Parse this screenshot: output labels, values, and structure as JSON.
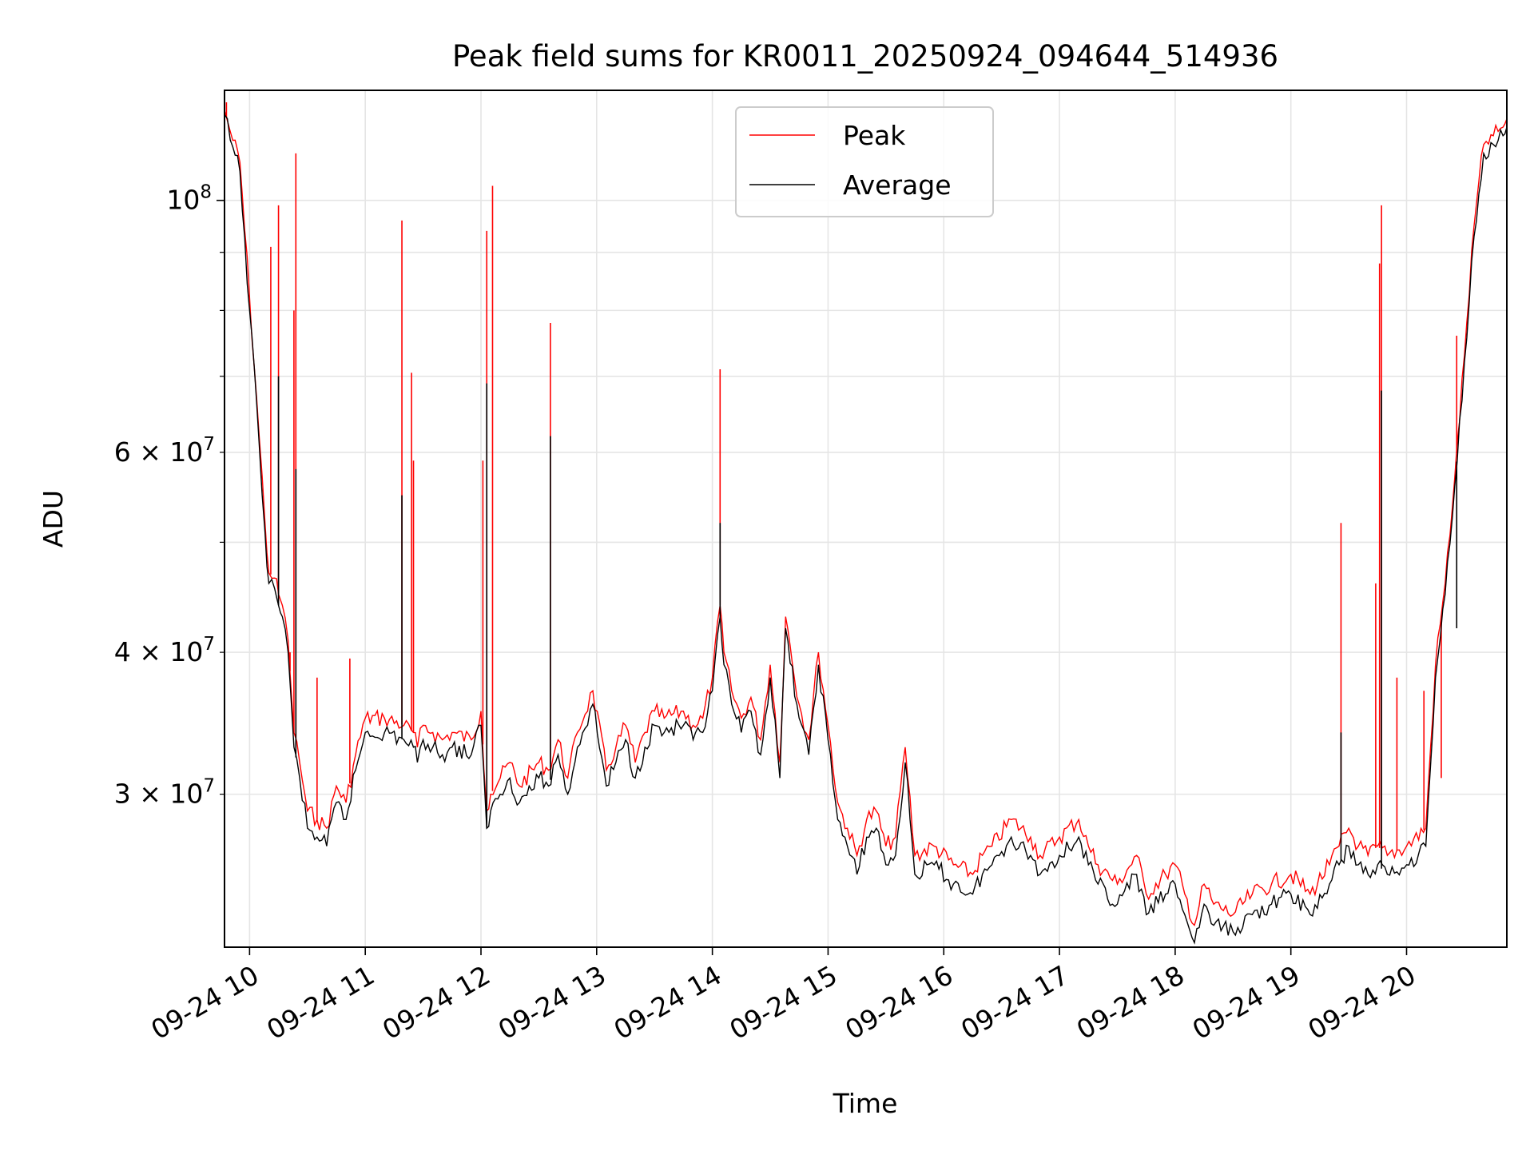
{
  "chart_data": {
    "type": "line",
    "title": "Peak field sums for KR0011_20250924_094644_514936",
    "xlabel": "Time",
    "ylabel": "ADU",
    "yscale": "log",
    "xlim": [
      "2025-09-24 09:47",
      "2025-09-24 20:52"
    ],
    "ylim": [
      22000000,
      125000000
    ],
    "grid": true,
    "legend": "upper-center",
    "x_ticks": [
      "09-24 10",
      "09-24 11",
      "09-24 12",
      "09-24 13",
      "09-24 14",
      "09-24 15",
      "09-24 16",
      "09-24 17",
      "09-24 18",
      "09-24 19",
      "09-24 20"
    ],
    "y_ticks_major": [
      {
        "value": 100000000,
        "base": "10",
        "exp": "8",
        "mant": ""
      }
    ],
    "y_ticks_minor_labeled": [
      {
        "value": 30000000,
        "mant": "3",
        "base": "10",
        "exp": "7"
      },
      {
        "value": 40000000,
        "mant": "4",
        "base": "10",
        "exp": "7"
      },
      {
        "value": 60000000,
        "mant": "6",
        "base": "10",
        "exp": "7"
      }
    ],
    "series": [
      {
        "name": "Peak",
        "color": "#ff0000",
        "x": [
          "2025-09-24 09:47",
          "2025-09-24 09:50",
          "2025-09-24 09:55",
          "2025-09-24 10:00",
          "2025-09-24 10:05",
          "2025-09-24 10:08",
          "2025-09-24 10:10",
          "2025-09-24 10:13",
          "2025-09-24 10:15",
          "2025-09-24 10:17",
          "2025-09-24 10:20",
          "2025-09-24 10:23",
          "2025-09-24 10:26",
          "2025-09-24 10:30",
          "2025-09-24 10:35",
          "2025-09-24 10:40",
          "2025-09-24 10:45",
          "2025-09-24 10:50",
          "2025-09-24 10:55",
          "2025-09-24 11:00",
          "2025-09-24 11:10",
          "2025-09-24 11:20",
          "2025-09-24 11:25",
          "2025-09-24 11:27",
          "2025-09-24 11:30",
          "2025-09-24 11:35",
          "2025-09-24 11:40",
          "2025-09-24 11:45",
          "2025-09-24 11:55",
          "2025-09-24 12:00",
          "2025-09-24 12:03",
          "2025-09-24 12:05",
          "2025-09-24 12:10",
          "2025-09-24 12:15",
          "2025-09-24 12:20",
          "2025-09-24 12:30",
          "2025-09-24 12:35",
          "2025-09-24 12:40",
          "2025-09-24 12:45",
          "2025-09-24 12:50",
          "2025-09-24 12:58",
          "2025-09-24 13:05",
          "2025-09-24 13:10",
          "2025-09-24 13:15",
          "2025-09-24 13:20",
          "2025-09-24 13:25",
          "2025-09-24 13:30",
          "2025-09-24 13:35",
          "2025-09-24 13:45",
          "2025-09-24 13:50",
          "2025-09-24 13:55",
          "2025-09-24 14:00",
          "2025-09-24 14:04",
          "2025-09-24 14:06",
          "2025-09-24 14:10",
          "2025-09-24 14:15",
          "2025-09-24 14:20",
          "2025-09-24 14:25",
          "2025-09-24 14:30",
          "2025-09-24 14:35",
          "2025-09-24 14:38",
          "2025-09-24 14:45",
          "2025-09-24 14:50",
          "2025-09-24 14:55",
          "2025-09-24 15:00",
          "2025-09-24 15:05",
          "2025-09-24 15:10",
          "2025-09-24 15:15",
          "2025-09-24 15:20",
          "2025-09-24 15:25",
          "2025-09-24 15:30",
          "2025-09-24 15:35",
          "2025-09-24 15:40",
          "2025-09-24 15:45",
          "2025-09-24 15:55",
          "2025-09-24 16:05",
          "2025-09-24 16:15",
          "2025-09-24 16:20",
          "2025-09-24 16:25",
          "2025-09-24 16:35",
          "2025-09-24 16:45",
          "2025-09-24 16:50",
          "2025-09-24 17:00",
          "2025-09-24 17:10",
          "2025-09-24 17:15",
          "2025-09-24 17:20",
          "2025-09-24 17:30",
          "2025-09-24 17:40",
          "2025-09-24 17:45",
          "2025-09-24 17:55",
          "2025-09-24 18:00",
          "2025-09-24 18:05",
          "2025-09-24 18:10",
          "2025-09-24 18:15",
          "2025-09-24 18:20",
          "2025-09-24 18:30",
          "2025-09-24 18:40",
          "2025-09-24 18:50",
          "2025-09-24 19:00",
          "2025-09-24 19:10",
          "2025-09-24 19:20",
          "2025-09-24 19:25",
          "2025-09-24 19:30",
          "2025-09-24 19:35",
          "2025-09-24 19:40",
          "2025-09-24 19:45",
          "2025-09-24 19:50",
          "2025-09-24 20:00",
          "2025-09-24 20:10",
          "2025-09-24 20:15",
          "2025-09-24 20:20",
          "2025-09-24 20:25",
          "2025-09-24 20:30",
          "2025-09-24 20:35",
          "2025-09-24 20:40",
          "2025-09-24 20:45",
          "2025-09-24 20:50",
          "2025-09-24 20:52"
        ],
        "values": [
          120000000,
          115000000,
          108000000,
          82000000,
          62000000,
          52000000,
          47000000,
          46500000,
          45000000,
          44000000,
          41000000,
          34000000,
          32000000,
          29000000,
          28500000,
          28000000,
          30500000,
          29500000,
          32500000,
          35000000,
          35000000,
          34500000,
          34000000,
          33000000,
          34500000,
          34000000,
          33500000,
          34000000,
          33500000,
          35500000,
          29000000,
          30000000,
          31000000,
          32000000,
          30500000,
          32000000,
          31500000,
          33500000,
          31000000,
          34000000,
          37000000,
          31500000,
          33000000,
          34500000,
          32000000,
          34000000,
          35500000,
          35000000,
          35500000,
          34500000,
          35000000,
          38000000,
          44000000,
          40000000,
          37000000,
          35000000,
          36500000,
          33500000,
          39000000,
          32000000,
          43000000,
          36000000,
          33500000,
          40000000,
          34500000,
          29500000,
          28000000,
          26500000,
          28500000,
          29000000,
          27000000,
          27500000,
          33000000,
          26500000,
          27000000,
          26000000,
          25500000,
          26500000,
          27000000,
          28500000,
          27500000,
          26500000,
          27500000,
          28500000,
          27000000,
          26000000,
          25000000,
          26500000,
          24500000,
          25500000,
          26000000,
          24500000,
          23000000,
          25000000,
          24000000,
          23500000,
          24500000,
          25000000,
          25500000,
          24500000,
          26000000,
          27000000,
          28000000,
          27000000,
          26500000,
          27000000,
          26500000,
          27000000,
          28000000,
          39000000,
          46000000,
          57000000,
          73000000,
          95000000,
          112000000,
          114000000,
          116000000,
          118000000
        ],
        "spikes": [
          {
            "x": "2025-09-24 09:48",
            "value": 122000000
          },
          {
            "x": "2025-09-24 10:11",
            "value": 91000000
          },
          {
            "x": "2025-09-24 10:15",
            "value": 99000000
          },
          {
            "x": "2025-09-24 10:21",
            "value": 40000000
          },
          {
            "x": "2025-09-24 10:23",
            "value": 80000000
          },
          {
            "x": "2025-09-24 10:24",
            "value": 110000000
          },
          {
            "x": "2025-09-24 10:35",
            "value": 38000000
          },
          {
            "x": "2025-09-24 10:52",
            "value": 39500000
          },
          {
            "x": "2025-09-24 11:19",
            "value": 96000000
          },
          {
            "x": "2025-09-24 11:24",
            "value": 70500000
          },
          {
            "x": "2025-09-24 11:25",
            "value": 59000000
          },
          {
            "x": "2025-09-24 12:01",
            "value": 59000000
          },
          {
            "x": "2025-09-24 12:03",
            "value": 94000000
          },
          {
            "x": "2025-09-24 12:06",
            "value": 103000000
          },
          {
            "x": "2025-09-24 12:36",
            "value": 78000000
          },
          {
            "x": "2025-09-24 14:04",
            "value": 71000000
          },
          {
            "x": "2025-09-24 19:26",
            "value": 52000000
          },
          {
            "x": "2025-09-24 19:44",
            "value": 46000000
          },
          {
            "x": "2025-09-24 19:46",
            "value": 88000000
          },
          {
            "x": "2025-09-24 19:47",
            "value": 99000000
          },
          {
            "x": "2025-09-24 19:55",
            "value": 38000000
          },
          {
            "x": "2025-09-24 20:09",
            "value": 37000000
          },
          {
            "x": "2025-09-24 20:18",
            "value": 31000000
          },
          {
            "x": "2025-09-24 20:26",
            "value": 76000000
          }
        ]
      },
      {
        "name": "Average",
        "color": "#000000",
        "x": [
          "2025-09-24 09:47",
          "2025-09-24 09:50",
          "2025-09-24 09:55",
          "2025-09-24 10:00",
          "2025-09-24 10:05",
          "2025-09-24 10:08",
          "2025-09-24 10:10",
          "2025-09-24 10:13",
          "2025-09-24 10:15",
          "2025-09-24 10:17",
          "2025-09-24 10:20",
          "2025-09-24 10:23",
          "2025-09-24 10:26",
          "2025-09-24 10:30",
          "2025-09-24 10:35",
          "2025-09-24 10:40",
          "2025-09-24 10:45",
          "2025-09-24 10:50",
          "2025-09-24 10:55",
          "2025-09-24 11:00",
          "2025-09-24 11:10",
          "2025-09-24 11:20",
          "2025-09-24 11:25",
          "2025-09-24 11:27",
          "2025-09-24 11:30",
          "2025-09-24 11:35",
          "2025-09-24 11:40",
          "2025-09-24 11:45",
          "2025-09-24 11:55",
          "2025-09-24 12:00",
          "2025-09-24 12:03",
          "2025-09-24 12:05",
          "2025-09-24 12:10",
          "2025-09-24 12:15",
          "2025-09-24 12:20",
          "2025-09-24 12:30",
          "2025-09-24 12:35",
          "2025-09-24 12:40",
          "2025-09-24 12:45",
          "2025-09-24 12:50",
          "2025-09-24 12:58",
          "2025-09-24 13:05",
          "2025-09-24 13:10",
          "2025-09-24 13:15",
          "2025-09-24 13:20",
          "2025-09-24 13:25",
          "2025-09-24 13:30",
          "2025-09-24 13:35",
          "2025-09-24 13:45",
          "2025-09-24 13:50",
          "2025-09-24 13:55",
          "2025-09-24 14:00",
          "2025-09-24 14:04",
          "2025-09-24 14:06",
          "2025-09-24 14:10",
          "2025-09-24 14:15",
          "2025-09-24 14:20",
          "2025-09-24 14:25",
          "2025-09-24 14:30",
          "2025-09-24 14:35",
          "2025-09-24 14:38",
          "2025-09-24 14:45",
          "2025-09-24 14:50",
          "2025-09-24 14:55",
          "2025-09-24 15:00",
          "2025-09-24 15:05",
          "2025-09-24 15:10",
          "2025-09-24 15:15",
          "2025-09-24 15:20",
          "2025-09-24 15:25",
          "2025-09-24 15:30",
          "2025-09-24 15:35",
          "2025-09-24 15:40",
          "2025-09-24 15:45",
          "2025-09-24 15:55",
          "2025-09-24 16:05",
          "2025-09-24 16:15",
          "2025-09-24 16:20",
          "2025-09-24 16:25",
          "2025-09-24 16:35",
          "2025-09-24 16:45",
          "2025-09-24 16:50",
          "2025-09-24 17:00",
          "2025-09-24 17:10",
          "2025-09-24 17:15",
          "2025-09-24 17:20",
          "2025-09-24 17:30",
          "2025-09-24 17:40",
          "2025-09-24 17:45",
          "2025-09-24 17:55",
          "2025-09-24 18:00",
          "2025-09-24 18:05",
          "2025-09-24 18:10",
          "2025-09-24 18:15",
          "2025-09-24 18:20",
          "2025-09-24 18:30",
          "2025-09-24 18:40",
          "2025-09-24 18:50",
          "2025-09-24 19:00",
          "2025-09-24 19:10",
          "2025-09-24 19:20",
          "2025-09-24 19:25",
          "2025-09-24 19:30",
          "2025-09-24 19:35",
          "2025-09-24 19:40",
          "2025-09-24 19:45",
          "2025-09-24 19:50",
          "2025-09-24 20:00",
          "2025-09-24 20:10",
          "2025-09-24 20:15",
          "2025-09-24 20:20",
          "2025-09-24 20:25",
          "2025-09-24 20:30",
          "2025-09-24 20:35",
          "2025-09-24 20:40",
          "2025-09-24 20:45",
          "2025-09-24 20:50",
          "2025-09-24 20:52"
        ],
        "values": [
          119000000,
          113000000,
          106000000,
          80000000,
          61000000,
          51000000,
          46000000,
          45500000,
          44000000,
          43000000,
          40000000,
          33000000,
          31000000,
          28000000,
          27500000,
          27000000,
          29500000,
          28500000,
          31500000,
          34000000,
          34000000,
          33500000,
          33000000,
          32000000,
          33500000,
          33000000,
          32500000,
          33000000,
          32500000,
          34500000,
          28000000,
          29000000,
          30000000,
          31000000,
          29500000,
          31000000,
          30500000,
          32500000,
          30000000,
          33000000,
          36000000,
          30500000,
          32000000,
          33500000,
          31000000,
          33000000,
          34500000,
          34000000,
          34500000,
          33500000,
          34000000,
          37000000,
          43000000,
          39000000,
          36000000,
          34000000,
          35500000,
          32500000,
          38000000,
          31000000,
          42000000,
          35000000,
          32500000,
          39000000,
          33500000,
          28500000,
          27000000,
          25500000,
          27500000,
          28000000,
          26000000,
          26500000,
          32000000,
          25500000,
          26000000,
          25000000,
          24500000,
          25500000,
          26000000,
          27500000,
          26500000,
          25500000,
          26500000,
          27500000,
          26000000,
          25000000,
          24000000,
          25500000,
          23500000,
          24500000,
          25000000,
          23500000,
          22200000,
          24000000,
          23000000,
          22700000,
          23500000,
          24000000,
          24500000,
          23500000,
          25000000,
          26000000,
          27000000,
          26000000,
          25500000,
          26000000,
          25500000,
          26000000,
          27000000,
          38000000,
          45000000,
          56000000,
          72000000,
          93000000,
          110000000,
          112000000,
          114000000,
          116000000
        ],
        "spikes": [
          {
            "x": "2025-09-24 10:15",
            "value": 70000000
          },
          {
            "x": "2025-09-24 10:24",
            "value": 58000000
          },
          {
            "x": "2025-09-24 11:19",
            "value": 55000000
          },
          {
            "x": "2025-09-24 12:03",
            "value": 69000000
          },
          {
            "x": "2025-09-24 12:36",
            "value": 62000000
          },
          {
            "x": "2025-09-24 14:04",
            "value": 52000000
          },
          {
            "x": "2025-09-24 19:26",
            "value": 34000000
          },
          {
            "x": "2025-09-24 19:47",
            "value": 68000000
          },
          {
            "x": "2025-09-24 20:26",
            "value": 42000000
          }
        ]
      }
    ]
  }
}
